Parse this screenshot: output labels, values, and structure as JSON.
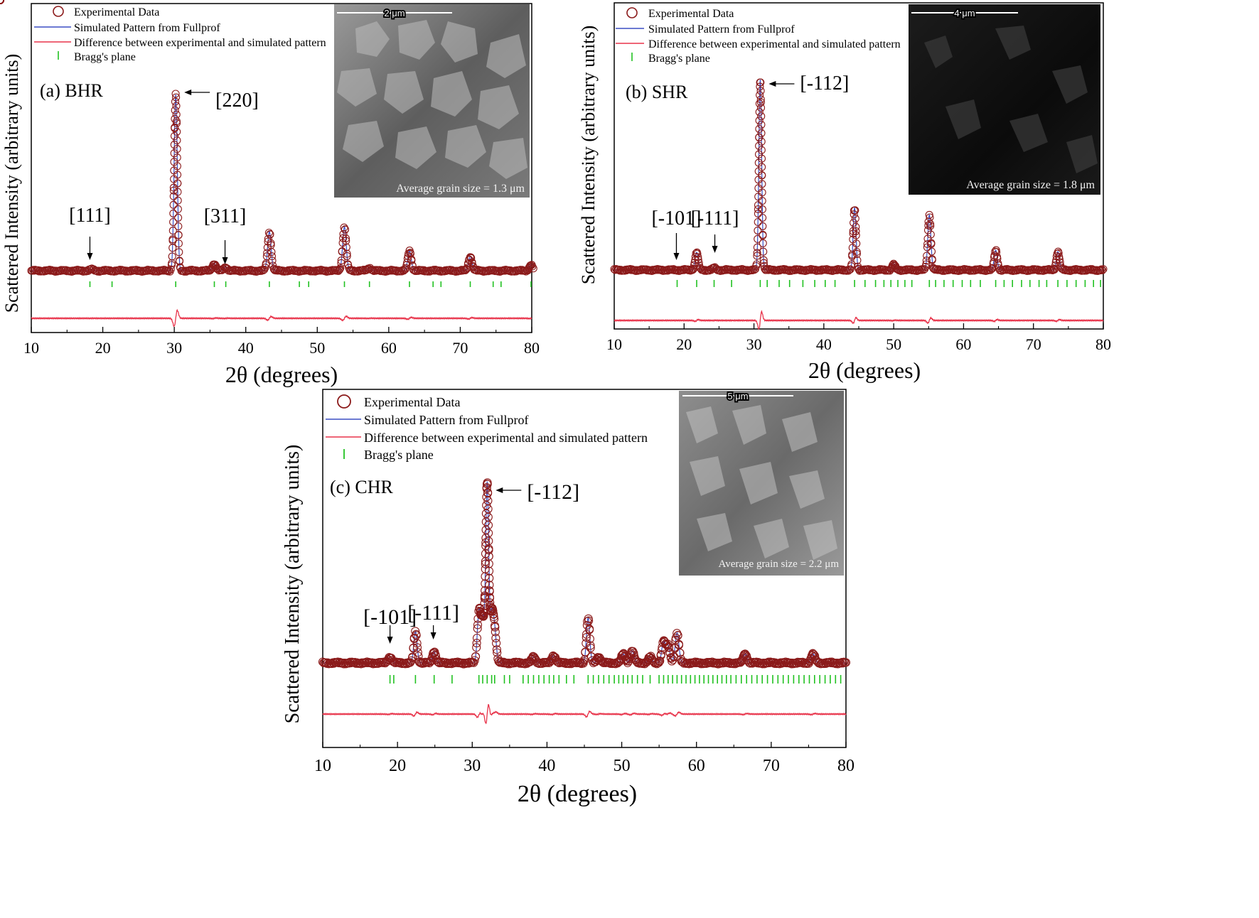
{
  "figure": {
    "legend": {
      "experimental": "Experimental Data",
      "simulated": "Simulated Pattern from Fullprof",
      "difference": "Difference between experimental and simulated pattern",
      "bragg": "Bragg's plane"
    },
    "xlabel": "2θ (degrees)",
    "ylabel": "Scattered Intensity (arbitrary units)",
    "xticks": [
      "10",
      "20",
      "30",
      "40",
      "50",
      "60",
      "70",
      "80"
    ],
    "colors": {
      "experimental": "#8b1a1a",
      "simulated": "#3b4fc4",
      "difference": "#e8334a",
      "bragg": "#22c222"
    }
  },
  "chart_data": [
    {
      "type": "line",
      "panel_label": "(a) BHR",
      "xlabel": "2θ (degrees)",
      "ylabel": "Scattered Intensity (arbitrary units)",
      "xlim": [
        10,
        80
      ],
      "y_units": "arbitrary units",
      "background": 12,
      "peaks": [
        {
          "x": 18.4,
          "y": 2,
          "w": 0.25
        },
        {
          "x": 30.2,
          "y": 248,
          "w": 0.22
        },
        {
          "x": 35.6,
          "y": 10,
          "w": 0.25
        },
        {
          "x": 37.2,
          "y": 5,
          "w": 0.25
        },
        {
          "x": 43.3,
          "y": 55,
          "w": 0.25
        },
        {
          "x": 53.8,
          "y": 62,
          "w": 0.25
        },
        {
          "x": 57.3,
          "y": 4,
          "w": 0.25
        },
        {
          "x": 62.9,
          "y": 28,
          "w": 0.25
        },
        {
          "x": 71.4,
          "y": 20,
          "w": 0.25
        },
        {
          "x": 79.9,
          "y": 8,
          "w": 0.25
        }
      ],
      "bragg_positions": [
        18.2,
        21.3,
        30.2,
        35.6,
        37.2,
        43.3,
        47.5,
        48.8,
        53.8,
        57.3,
        62.9,
        66.2,
        67.3,
        71.4,
        74.6,
        75.7,
        79.9
      ],
      "annotations": [
        {
          "text": "[111]",
          "x": 18.2
        },
        {
          "text": "[220]",
          "x": 30.2
        },
        {
          "text": "[311]",
          "x": 37.1
        }
      ],
      "inset": {
        "scale_bar": "2 μm",
        "caption": "Average grain size = 1.3 μm"
      }
    },
    {
      "type": "line",
      "panel_label": "(b) SHR",
      "xlabel": "2θ (degrees)",
      "ylabel": "Scattered Intensity (arbitrary units)",
      "xlim": [
        10,
        80
      ],
      "y_units": "arbitrary units",
      "background": 12,
      "peaks": [
        {
          "x": 21.8,
          "y": 25,
          "w": 0.22
        },
        {
          "x": 24.3,
          "y": 3,
          "w": 0.22
        },
        {
          "x": 30.9,
          "y": 268,
          "w": 0.2
        },
        {
          "x": 44.4,
          "y": 88,
          "w": 0.2
        },
        {
          "x": 50.0,
          "y": 8,
          "w": 0.22
        },
        {
          "x": 55.1,
          "y": 78,
          "w": 0.22
        },
        {
          "x": 64.6,
          "y": 28,
          "w": 0.22
        },
        {
          "x": 73.5,
          "y": 26,
          "w": 0.22
        }
      ],
      "bragg_positions": [
        19.0,
        21.8,
        24.3,
        26.8,
        30.9,
        31.9,
        33.6,
        35.1,
        37.0,
        38.7,
        40.2,
        41.6,
        44.4,
        45.9,
        47.4,
        48.6,
        49.6,
        50.6,
        51.6,
        52.6,
        55.1,
        56.0,
        57.2,
        58.5,
        59.8,
        61.0,
        62.4,
        64.6,
        65.8,
        67.0,
        68.3,
        69.5,
        70.8,
        71.9,
        73.5,
        74.8,
        76.1,
        77.4,
        78.6,
        79.6
      ],
      "annotations": [
        {
          "text": "[-101]",
          "x": 18.9
        },
        {
          "text": "[-111]",
          "x": 24.4
        },
        {
          "text": "[-112]",
          "x": 30.9
        }
      ],
      "inset": {
        "scale_bar": "4 μm",
        "caption": "Average grain size = 1.8 μm"
      }
    },
    {
      "type": "line",
      "panel_label": "(c) CHR",
      "xlabel": "2θ (degrees)",
      "ylabel": "Scattered Intensity (arbitrary units)",
      "xlim": [
        10,
        80
      ],
      "y_units": "arbitrary units",
      "background": 12,
      "peaks": [
        {
          "x": 19.0,
          "y": 8,
          "w": 0.25
        },
        {
          "x": 22.4,
          "y": 42,
          "w": 0.22
        },
        {
          "x": 24.9,
          "y": 15,
          "w": 0.22
        },
        {
          "x": 30.9,
          "y": 68,
          "w": 0.22
        },
        {
          "x": 31.4,
          "y": 55,
          "w": 0.22
        },
        {
          "x": 32.0,
          "y": 238,
          "w": 0.2
        },
        {
          "x": 32.6,
          "y": 62,
          "w": 0.22
        },
        {
          "x": 33.0,
          "y": 40,
          "w": 0.22
        },
        {
          "x": 38.2,
          "y": 8,
          "w": 0.25
        },
        {
          "x": 40.9,
          "y": 10,
          "w": 0.25
        },
        {
          "x": 45.5,
          "y": 60,
          "w": 0.22
        },
        {
          "x": 46.9,
          "y": 8,
          "w": 0.25
        },
        {
          "x": 50.2,
          "y": 12,
          "w": 0.25
        },
        {
          "x": 51.4,
          "y": 16,
          "w": 0.25
        },
        {
          "x": 53.8,
          "y": 8,
          "w": 0.25
        },
        {
          "x": 55.6,
          "y": 28,
          "w": 0.25
        },
        {
          "x": 56.2,
          "y": 22,
          "w": 0.25
        },
        {
          "x": 57.4,
          "y": 40,
          "w": 0.25
        },
        {
          "x": 66.5,
          "y": 12,
          "w": 0.25
        },
        {
          "x": 75.6,
          "y": 12,
          "w": 0.25
        }
      ],
      "bragg_positions": [
        19.0,
        19.5,
        22.4,
        24.9,
        27.3,
        30.9,
        31.4,
        32.0,
        32.6,
        33.0,
        34.3,
        35.0,
        36.8,
        37.5,
        38.2,
        38.9,
        39.6,
        40.3,
        40.9,
        41.6,
        42.6,
        43.6,
        45.5,
        46.2,
        46.9,
        47.6,
        48.3,
        49.0,
        49.6,
        50.2,
        50.8,
        51.4,
        52.1,
        52.8,
        53.8,
        55.0,
        55.6,
        56.2,
        56.8,
        57.4,
        58.0,
        58.6,
        59.2,
        59.8,
        60.4,
        61.0,
        61.6,
        62.2,
        62.8,
        63.4,
        64.0,
        64.6,
        65.3,
        66.0,
        66.7,
        67.4,
        68.1,
        68.8,
        69.5,
        70.2,
        70.9,
        71.6,
        72.3,
        73.0,
        73.7,
        74.4,
        75.1,
        75.8,
        76.5,
        77.2,
        77.9,
        78.6,
        79.3
      ],
      "annotations": [
        {
          "text": "[-101]",
          "x": 19.0
        },
        {
          "text": "[-111]",
          "x": 24.8
        },
        {
          "text": "[-112]",
          "x": 32.0
        }
      ],
      "inset": {
        "scale_bar": "5 μm",
        "caption": "Average grain size = 2.2 μm"
      }
    }
  ]
}
